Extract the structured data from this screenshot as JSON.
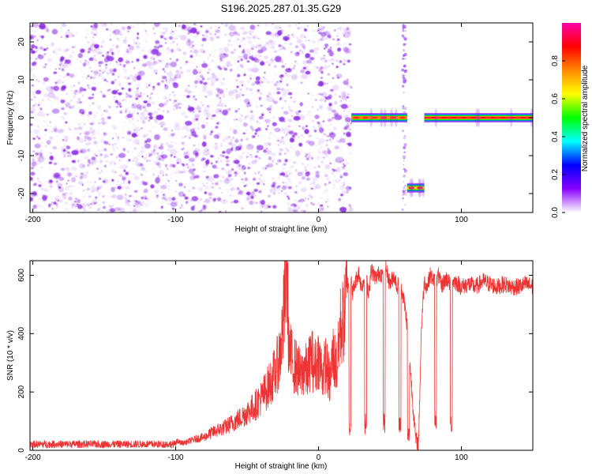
{
  "chart_data": [
    {
      "type": "heatmap",
      "title": "S196.2025.287.01.35.G29",
      "xlabel": "Height of straight line (km)",
      "ylabel": "Frequency (Hz)",
      "xlim": [
        -202,
        150
      ],
      "ylim": [
        -25,
        25
      ],
      "x_ticks": [
        -200,
        -100,
        0,
        100
      ],
      "x_tick_labels": [
        "-200",
        "-100",
        "0",
        "100"
      ],
      "y_ticks": [
        -20,
        -10,
        0,
        10,
        20
      ],
      "y_tick_labels": [
        "-20",
        "-10",
        "0",
        "10",
        "20"
      ],
      "noise_region_x": [
        -200,
        23
      ],
      "tones": [
        {
          "x": [
            23,
            62
          ],
          "freq": 0,
          "peak": 0.75
        },
        {
          "x": [
            62,
            74
          ],
          "freq": -18.5,
          "peak": 0.6
        },
        {
          "x": [
            74,
            150
          ],
          "freq": 0,
          "peak": 0.9
        }
      ],
      "colorbar": {
        "label": "Normalized spectral amplitude",
        "range": [
          0,
          1
        ],
        "ticks": [
          0,
          0.2,
          0.4,
          0.6,
          0.8
        ],
        "tick_labels": [
          "0.0",
          "0.2",
          "0.4",
          "0.6",
          "0.8"
        ],
        "colors": [
          "#ffffff",
          "#8800ff",
          "#0000ff",
          "#00ffff",
          "#00ff00",
          "#ffff00",
          "#ff8800",
          "#ff0000",
          "#ff00aa"
        ]
      }
    },
    {
      "type": "line",
      "xlabel": "Height of straight line (km)",
      "ylabel": "SNR (10 * v/v)",
      "xlim": [
        -202,
        150
      ],
      "ylim": [
        0,
        650
      ],
      "x_ticks": [
        -200,
        -100,
        0,
        100
      ],
      "x_tick_labels": [
        "-200",
        "-100",
        "0",
        "100"
      ],
      "y_ticks": [
        0,
        200,
        400,
        600
      ],
      "y_tick_labels": [
        "0",
        "200",
        "400",
        "600"
      ],
      "series": [
        {
          "color": "#ee3333",
          "x": [
            -202,
            -190,
            -180,
            -170,
            -160,
            -150,
            -140,
            -130,
            -120,
            -110,
            -100,
            -95,
            -90,
            -85,
            -80,
            -75,
            -70,
            -65,
            -60,
            -55,
            -50,
            -45,
            -40,
            -35,
            -30,
            -27,
            -25,
            -23,
            -22,
            -21,
            -20,
            -18,
            -15,
            -12,
            -10,
            -8,
            -5,
            -3,
            0,
            3,
            5,
            8,
            10,
            13,
            15,
            18,
            20,
            22,
            24,
            26,
            28,
            30,
            33,
            35,
            37,
            40,
            43,
            45,
            47,
            50,
            53,
            55,
            57,
            60,
            62,
            64,
            66,
            68,
            70,
            72,
            74,
            76,
            78,
            80,
            82,
            84,
            86,
            88,
            90,
            92,
            95,
            98,
            100,
            105,
            110,
            115,
            120,
            125,
            130,
            135,
            140,
            145,
            150
          ],
          "y": [
            25,
            22,
            24,
            20,
            22,
            25,
            20,
            23,
            24,
            22,
            30,
            25,
            32,
            40,
            45,
            60,
            70,
            80,
            95,
            110,
            130,
            150,
            180,
            220,
            270,
            330,
            420,
            560,
            640,
            380,
            330,
            300,
            280,
            250,
            290,
            260,
            330,
            280,
            320,
            260,
            300,
            230,
            330,
            280,
            420,
            450,
            560,
            600,
            540,
            580,
            610,
            560,
            600,
            540,
            620,
            590,
            610,
            600,
            630,
            570,
            600,
            560,
            580,
            510,
            430,
            300,
            160,
            40,
            20,
            420,
            580,
            560,
            600,
            590,
            570,
            600,
            560,
            580,
            590,
            570,
            580,
            570,
            560,
            570,
            560,
            580,
            570,
            560,
            570,
            560,
            560,
            570,
            560
          ],
          "dips": [
            {
              "x": 22,
              "y": 70
            },
            {
              "x": 33,
              "y": 80
            },
            {
              "x": 46,
              "y": 85
            },
            {
              "x": 57,
              "y": 75
            },
            {
              "x": 63,
              "y": 40
            },
            {
              "x": 82,
              "y": 100
            },
            {
              "x": 93,
              "y": 80
            }
          ]
        }
      ]
    }
  ]
}
